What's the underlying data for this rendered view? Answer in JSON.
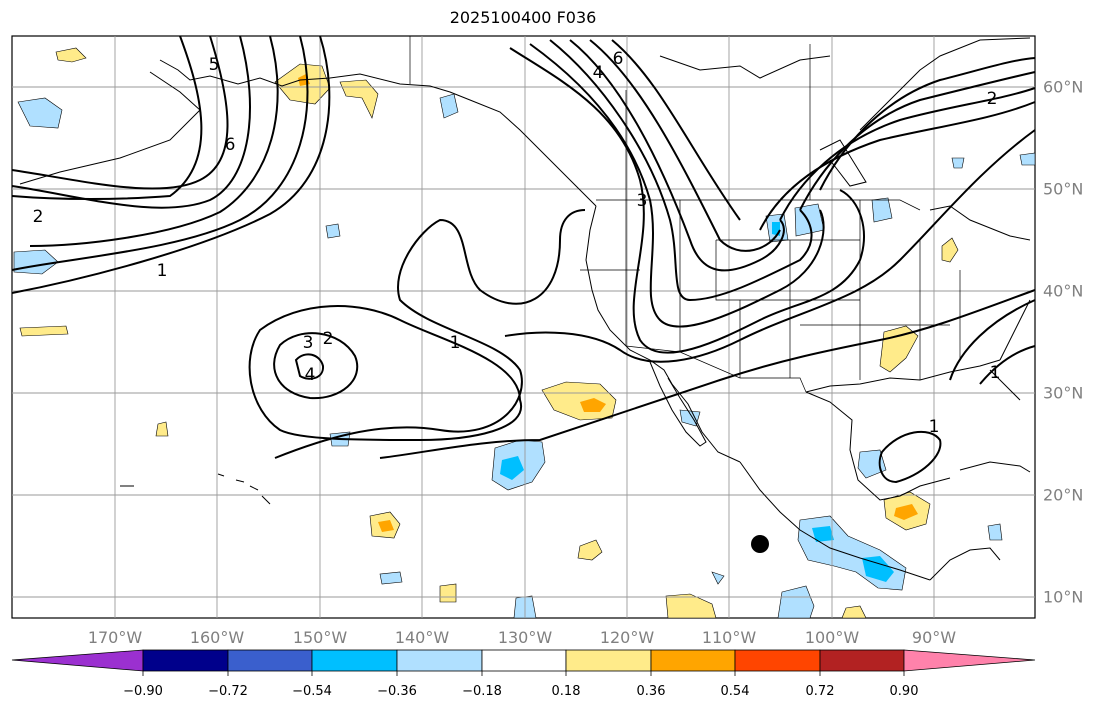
{
  "title": "2025100400 F036",
  "lat_labels": [
    "60°N",
    "50°N",
    "40°N",
    "30°N",
    "20°N",
    "10°N"
  ],
  "lon_labels": [
    "170°W",
    "160°W",
    "150°W",
    "140°W",
    "130°W",
    "120°W",
    "110°W",
    "100°W",
    "90°W"
  ],
  "contour_labels": [
    "1",
    "1",
    "1",
    "1",
    "2",
    "2",
    "2",
    "3",
    "3",
    "4",
    "4",
    "5",
    "6",
    "6"
  ],
  "colorbar": {
    "ticks": [
      "−0.90",
      "−0.72",
      "−0.54",
      "−0.36",
      "−0.18",
      "0.18",
      "0.36",
      "0.54",
      "0.72",
      "0.90"
    ],
    "colors": [
      "#9b30d0",
      "#00008b",
      "#3a5fcd",
      "#00bfff",
      "#b0e0ff",
      "#ffffff",
      "#ffeb8a",
      "#ffa500",
      "#ff4500",
      "#b22222",
      "#ff82ab"
    ]
  },
  "colors": {
    "grid": "#9a9a9a",
    "land_line": "#000000",
    "contour": "#000000"
  }
}
